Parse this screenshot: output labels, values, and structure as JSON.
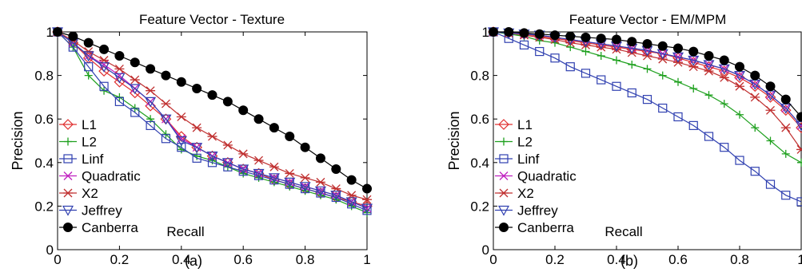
{
  "chart_data": [
    {
      "type": "line",
      "title": "Feature Vector - Texture",
      "xlabel": "Recall",
      "ylabel": "Precision",
      "panel_label": "(a)",
      "xlim": [
        0,
        1
      ],
      "ylim": [
        0,
        1
      ],
      "xticks": [
        "0",
        "0.2",
        "0.4",
        "0.6",
        "0.8",
        "1"
      ],
      "yticks": [
        "0",
        "0.2",
        "0.4",
        "0.6",
        "0.8",
        "1"
      ],
      "grid": false,
      "legend_position": "left",
      "x": [
        0,
        0.05,
        0.1,
        0.15,
        0.2,
        0.25,
        0.3,
        0.35,
        0.4,
        0.45,
        0.5,
        0.55,
        0.6,
        0.65,
        0.7,
        0.75,
        0.8,
        0.85,
        0.9,
        0.95,
        1.0
      ],
      "series": [
        {
          "name": "L1",
          "color": "#e03030",
          "marker": "diamond",
          "values": [
            1.0,
            0.95,
            0.88,
            0.82,
            0.77,
            0.72,
            0.66,
            0.6,
            0.52,
            0.47,
            0.43,
            0.4,
            0.37,
            0.35,
            0.32,
            0.3,
            0.28,
            0.26,
            0.24,
            0.22,
            0.2
          ]
        },
        {
          "name": "L2",
          "color": "#1ea01e",
          "marker": "plus",
          "values": [
            1.0,
            0.93,
            0.8,
            0.73,
            0.7,
            0.65,
            0.6,
            0.53,
            0.46,
            0.43,
            0.41,
            0.38,
            0.35,
            0.33,
            0.31,
            0.29,
            0.27,
            0.25,
            0.23,
            0.2,
            0.17
          ]
        },
        {
          "name": "Linf",
          "color": "#3040b0",
          "marker": "square",
          "values": [
            1.0,
            0.93,
            0.84,
            0.75,
            0.68,
            0.63,
            0.57,
            0.51,
            0.47,
            0.42,
            0.4,
            0.38,
            0.36,
            0.34,
            0.32,
            0.3,
            0.28,
            0.26,
            0.24,
            0.21,
            0.18
          ]
        },
        {
          "name": "Quadratic",
          "color": "#c020c0",
          "marker": "x",
          "values": [
            1.0,
            0.95,
            0.89,
            0.85,
            0.8,
            0.74,
            0.68,
            0.6,
            0.51,
            0.47,
            0.43,
            0.4,
            0.37,
            0.35,
            0.33,
            0.31,
            0.29,
            0.27,
            0.25,
            0.22,
            0.19
          ]
        },
        {
          "name": "X2",
          "color": "#c03030",
          "marker": "asterisk",
          "values": [
            1.0,
            0.96,
            0.91,
            0.87,
            0.83,
            0.78,
            0.73,
            0.67,
            0.61,
            0.56,
            0.52,
            0.48,
            0.44,
            0.41,
            0.38,
            0.35,
            0.33,
            0.31,
            0.28,
            0.25,
            0.23
          ]
        },
        {
          "name": "Jeffrey",
          "color": "#3040b0",
          "marker": "triangle-down",
          "values": [
            1.0,
            0.95,
            0.89,
            0.84,
            0.79,
            0.74,
            0.68,
            0.6,
            0.5,
            0.47,
            0.43,
            0.4,
            0.37,
            0.35,
            0.33,
            0.31,
            0.29,
            0.27,
            0.25,
            0.22,
            0.19
          ]
        },
        {
          "name": "Canberra",
          "color": "#000000",
          "marker": "circle",
          "values": [
            1.0,
            0.98,
            0.95,
            0.92,
            0.89,
            0.86,
            0.83,
            0.8,
            0.77,
            0.74,
            0.71,
            0.68,
            0.64,
            0.6,
            0.56,
            0.52,
            0.47,
            0.42,
            0.37,
            0.32,
            0.28
          ]
        }
      ]
    },
    {
      "type": "line",
      "title": "Feature Vector - EM/MPM",
      "xlabel": "Recall",
      "ylabel": "Precision",
      "panel_label": "(b)",
      "xlim": [
        0,
        1
      ],
      "ylim": [
        0,
        1
      ],
      "xticks": [
        "0",
        "0.2",
        "0.4",
        "0.6",
        "0.8",
        "1"
      ],
      "yticks": [
        "0",
        "0.2",
        "0.4",
        "0.6",
        "0.8",
        "1"
      ],
      "grid": false,
      "legend_position": "left",
      "x": [
        0,
        0.05,
        0.1,
        0.15,
        0.2,
        0.25,
        0.3,
        0.35,
        0.4,
        0.45,
        0.5,
        0.55,
        0.6,
        0.65,
        0.7,
        0.75,
        0.8,
        0.85,
        0.9,
        0.95,
        1.0
      ],
      "series": [
        {
          "name": "L1",
          "color": "#e03030",
          "marker": "diamond",
          "values": [
            1.0,
            0.995,
            0.99,
            0.98,
            0.97,
            0.96,
            0.95,
            0.94,
            0.93,
            0.92,
            0.91,
            0.9,
            0.88,
            0.86,
            0.84,
            0.82,
            0.79,
            0.75,
            0.7,
            0.64,
            0.56
          ]
        },
        {
          "name": "L2",
          "color": "#1ea01e",
          "marker": "plus",
          "values": [
            1.0,
            0.99,
            0.98,
            0.96,
            0.95,
            0.93,
            0.91,
            0.89,
            0.87,
            0.85,
            0.83,
            0.8,
            0.77,
            0.74,
            0.71,
            0.67,
            0.62,
            0.56,
            0.5,
            0.44,
            0.4
          ]
        },
        {
          "name": "Linf",
          "color": "#3040b0",
          "marker": "square",
          "values": [
            1.0,
            0.97,
            0.94,
            0.91,
            0.88,
            0.84,
            0.81,
            0.78,
            0.75,
            0.72,
            0.69,
            0.65,
            0.61,
            0.57,
            0.52,
            0.47,
            0.41,
            0.36,
            0.3,
            0.25,
            0.22
          ]
        },
        {
          "name": "Quadratic",
          "color": "#c020c0",
          "marker": "x",
          "values": [
            1.0,
            0.995,
            0.99,
            0.985,
            0.975,
            0.965,
            0.955,
            0.945,
            0.935,
            0.925,
            0.915,
            0.9,
            0.885,
            0.87,
            0.85,
            0.83,
            0.8,
            0.76,
            0.71,
            0.65,
            0.57
          ]
        },
        {
          "name": "X2",
          "color": "#c03030",
          "marker": "asterisk",
          "values": [
            1.0,
            0.995,
            0.985,
            0.975,
            0.965,
            0.95,
            0.94,
            0.93,
            0.92,
            0.905,
            0.89,
            0.875,
            0.86,
            0.84,
            0.82,
            0.79,
            0.75,
            0.7,
            0.64,
            0.56,
            0.46
          ]
        },
        {
          "name": "Jeffrey",
          "color": "#3040b0",
          "marker": "triangle-down",
          "values": [
            1.0,
            0.995,
            0.99,
            0.985,
            0.975,
            0.965,
            0.955,
            0.945,
            0.935,
            0.925,
            0.915,
            0.9,
            0.885,
            0.87,
            0.85,
            0.83,
            0.8,
            0.76,
            0.71,
            0.65,
            0.57
          ]
        },
        {
          "name": "Canberra",
          "color": "#000000",
          "marker": "circle",
          "values": [
            1.0,
            1.0,
            0.995,
            0.99,
            0.985,
            0.98,
            0.975,
            0.97,
            0.965,
            0.955,
            0.945,
            0.935,
            0.925,
            0.91,
            0.89,
            0.87,
            0.84,
            0.8,
            0.75,
            0.69,
            0.61
          ]
        }
      ]
    }
  ]
}
